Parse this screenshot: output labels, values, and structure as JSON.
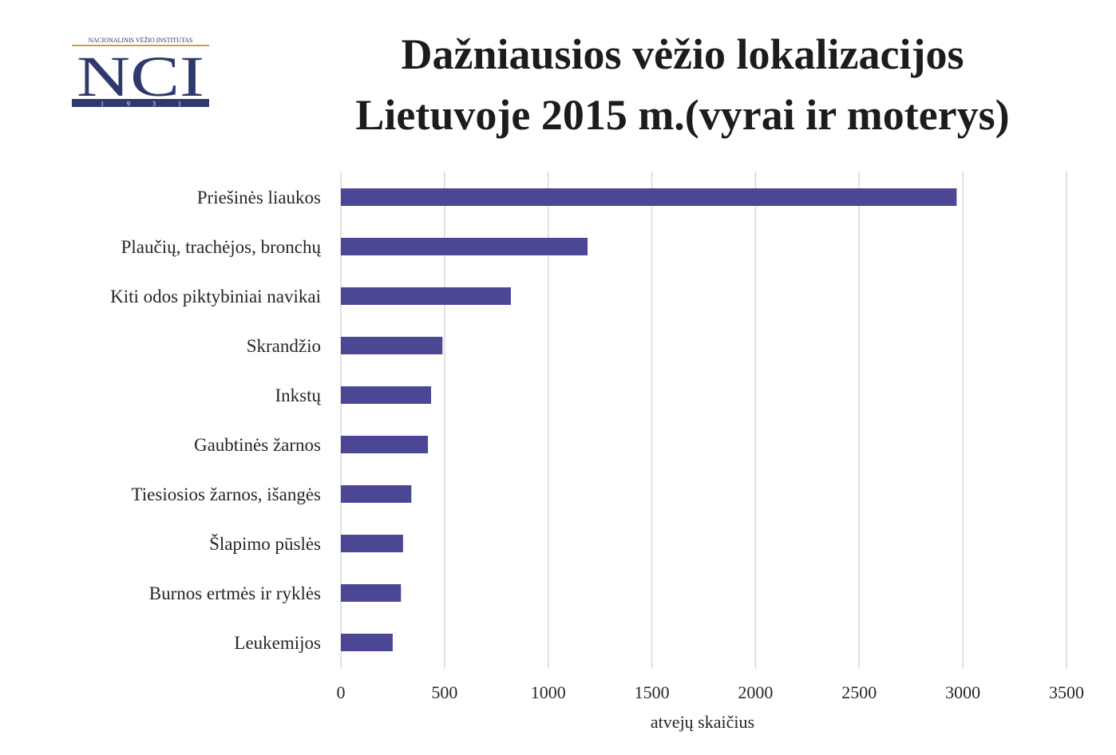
{
  "logo": {
    "top_text": "NACIONALINIS VĖŽIO INSTITUTAS",
    "letters": "NCI",
    "year_digits": [
      "1",
      "9",
      "3",
      "1"
    ]
  },
  "chart_data": {
    "type": "bar",
    "orientation": "horizontal",
    "title_line1": "Dažniausios vėžio lokalizacijos",
    "title_line2": "Lietuvoje 2015 m.(vyrai ir moterys)",
    "categories": [
      "Priešinės liaukos",
      "Plaučių, trachėjos, bronchų",
      "Kiti odos piktybiniai navikai",
      "Skrandžio",
      "Inkstų",
      "Gaubtinės žarnos",
      "Tiesiosios žarnos, išangės",
      "Šlapimo pūslės",
      "Burnos ertmės ir ryklės",
      "Leukemijos"
    ],
    "values": [
      2970,
      1190,
      820,
      490,
      435,
      420,
      340,
      300,
      290,
      250
    ],
    "xlabel": "atvejų skaičius",
    "ylabel": "",
    "xlim": [
      0,
      3500
    ],
    "xticks": [
      0,
      500,
      1000,
      1500,
      2000,
      2500,
      3000,
      3500
    ],
    "grid": true,
    "bar_color": "#4b4794",
    "grid_color": "#d9d9d9"
  }
}
